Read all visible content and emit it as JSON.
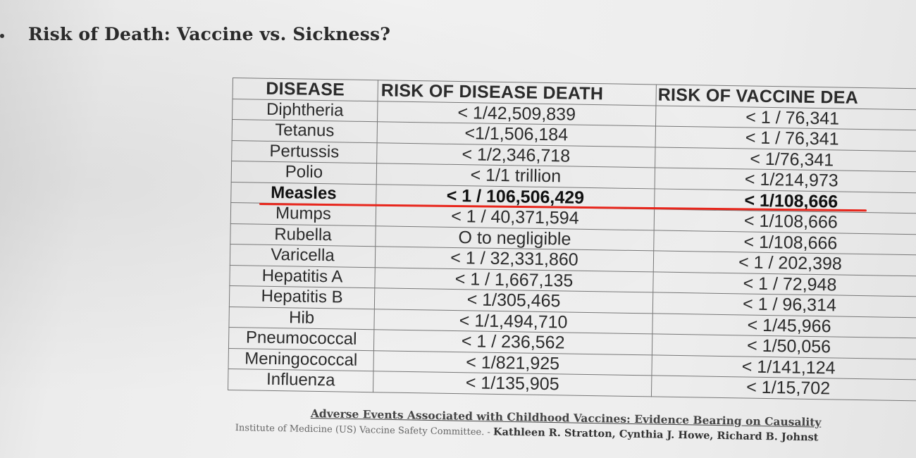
{
  "document": {
    "title": "Risk of Death: Vaccine vs. Sickness?",
    "citation_title": "Adverse Events Associated with Childhood Vaccines: Evidence Bearing on Causality",
    "committee": "Institute of Medicine (US) Vaccine Safety Committee. -",
    "authors": "Kathleen R. Stratton, Cynthia J. Howe, Richard B. Johnst"
  },
  "table": {
    "headers": [
      "DISEASE",
      "RISK OF DISEASE DEATH",
      "RISK OF VACCINE DEA"
    ],
    "rows": [
      {
        "disease": "Diphtheria",
        "disease_risk": "< 1/42,509,839",
        "vaccine_risk": "< 1 / 76,341"
      },
      {
        "disease": "Tetanus",
        "disease_risk": "<1/1,506,184",
        "vaccine_risk": "< 1 / 76,341"
      },
      {
        "disease": "Pertussis",
        "disease_risk": "< 1/2,346,718",
        "vaccine_risk": "< 1/76,341"
      },
      {
        "disease": "Polio",
        "disease_risk": "< 1/1 trillion",
        "vaccine_risk": "< 1/214,973"
      },
      {
        "disease": "Measles",
        "disease_risk": "< 1 / 106,506,429",
        "vaccine_risk": "< 1/108,666"
      },
      {
        "disease": "Mumps",
        "disease_risk": "< 1 / 40,371,594",
        "vaccine_risk": "< 1/108,666"
      },
      {
        "disease": "Rubella",
        "disease_risk": "O to negligible",
        "vaccine_risk": "< 1/108,666"
      },
      {
        "disease": "Varicella",
        "disease_risk": "< 1 / 32,331,860",
        "vaccine_risk": "< 1 / 202,398"
      },
      {
        "disease": "Hepatitis A",
        "disease_risk": "< 1 / 1,667,135",
        "vaccine_risk": "< 1 / 72,948"
      },
      {
        "disease": "Hepatitis B",
        "disease_risk": "< 1/305,465",
        "vaccine_risk": "< 1 / 96,314"
      },
      {
        "disease": "Hib",
        "disease_risk": "< 1/1,494,710",
        "vaccine_risk": "< 1/45,966"
      },
      {
        "disease": "Pneumococcal",
        "disease_risk": "< 1 / 236,562",
        "vaccine_risk": "< 1/50,056"
      },
      {
        "disease": "Meningococcal",
        "disease_risk": "< 1/821,925",
        "vaccine_risk": "< 1/141,124"
      },
      {
        "disease": "Influenza",
        "disease_risk": "< 1/135,905",
        "vaccine_risk": "< 1/15,702"
      }
    ],
    "highlighted_row": "Measles",
    "annotation_color": "#e8261c"
  }
}
